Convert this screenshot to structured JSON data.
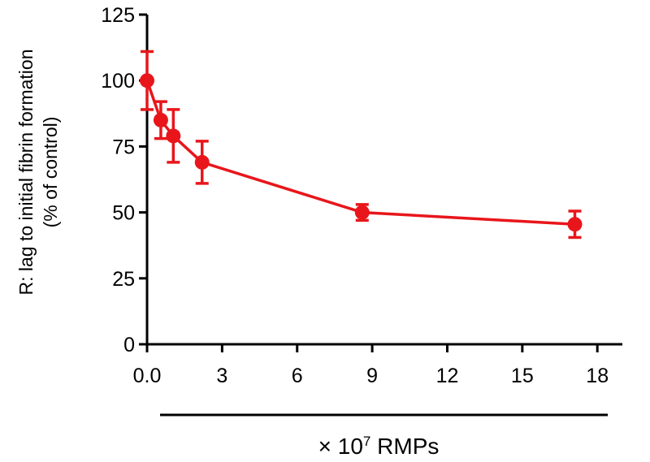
{
  "chart_data": {
    "type": "line",
    "ylabel_lines": [
      "R: lag to initial fibrin formation",
      "(% of control)"
    ],
    "xlabel_prefix": "× 10",
    "xlabel_exponent": "7",
    "xlabel_suffix": " RMPs",
    "xlim": [
      0,
      19
    ],
    "ylim": [
      0,
      125
    ],
    "x_ticks": [
      0,
      3,
      6,
      9,
      12,
      15,
      18
    ],
    "x_tick_labels": [
      "0.0",
      "3",
      "6",
      "9",
      "12",
      "15",
      "18"
    ],
    "y_ticks": [
      0,
      25,
      50,
      75,
      100,
      125
    ],
    "y_tick_labels": [
      "0",
      "25",
      "50",
      "75",
      "100",
      "125"
    ],
    "grid": false,
    "series": [
      {
        "color": "#e8161b",
        "points": [
          {
            "x": 0.0,
            "y": 100,
            "err": 11
          },
          {
            "x": 0.55,
            "y": 85,
            "err": 7
          },
          {
            "x": 1.05,
            "y": 79,
            "err": 10
          },
          {
            "x": 2.2,
            "y": 69,
            "err": 8
          },
          {
            "x": 8.6,
            "y": 50,
            "err": 3
          },
          {
            "x": 17.1,
            "y": 45.5,
            "err": 5
          }
        ]
      }
    ]
  }
}
